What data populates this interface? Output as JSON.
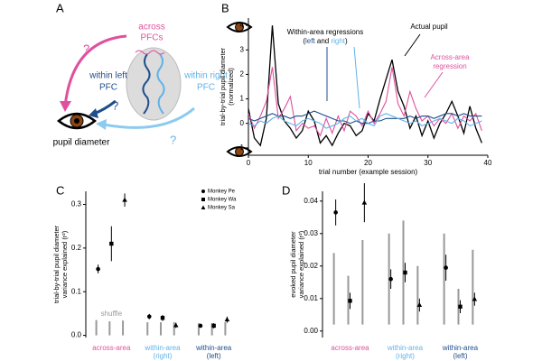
{
  "panel_letters": [
    "A",
    "B",
    "C",
    "D"
  ],
  "diagram": {
    "across": [
      "across",
      "PFCs"
    ],
    "within_left": [
      "within left",
      "PFC"
    ],
    "within_right": [
      "within right",
      "PFC"
    ],
    "pupil": "pupil diameter",
    "questions": [
      "?",
      "?",
      "?"
    ]
  },
  "chart_data": [
    {
      "type": "line",
      "xlabel": "trial number (example session)",
      "ylabel": [
        "trial-by-trial pupil diameter",
        "(normalized)"
      ],
      "xlim": [
        0,
        40
      ],
      "xticks": [
        0,
        10,
        20,
        30,
        40
      ],
      "ylim": [
        -1.3,
        4.3
      ],
      "yticks": [
        -1,
        0,
        1,
        2,
        3,
        4
      ],
      "annotations": {
        "within": "Within-area regressions",
        "within_sub": [
          "(",
          "left",
          " and ",
          "right",
          ")"
        ],
        "actual": "Actual pupil",
        "across": [
          "Across-area",
          "regression"
        ]
      },
      "x": [
        0,
        1,
        2,
        3,
        4,
        5,
        6,
        7,
        8,
        9,
        10,
        11,
        12,
        13,
        14,
        15,
        16,
        17,
        18,
        19,
        20,
        21,
        22,
        23,
        24,
        25,
        26,
        27,
        28,
        29,
        30,
        31,
        32,
        33,
        34,
        35,
        36,
        37,
        38,
        39
      ],
      "series": [
        {
          "name": "Actual pupil",
          "color": "#000000",
          "values": [
            0.6,
            -0.6,
            -0.9,
            0.2,
            4.0,
            0.8,
            0.1,
            -0.2,
            -0.6,
            -0.3,
            0.5,
            0.1,
            -0.8,
            -0.5,
            -0.9,
            -0.4,
            0.0,
            -0.1,
            -0.5,
            -0.3,
            0.4,
            0.1,
            1.0,
            1.8,
            2.6,
            1.3,
            0.7,
            -0.2,
            0.3,
            -0.5,
            0.1,
            -0.6,
            0.0,
            0.4,
            0.9,
            0.3,
            -0.4,
            0.7,
            -0.2,
            -0.8
          ]
        },
        {
          "name": "Across-area regression",
          "color": "#e0509f",
          "values": [
            0.4,
            -0.2,
            0.3,
            0.9,
            2.3,
            0.2,
            0.6,
            1.1,
            -0.3,
            0.0,
            -0.2,
            -0.1,
            -0.5,
            0.2,
            -0.4,
            0.3,
            -0.3,
            0.5,
            0.3,
            -0.1,
            0.5,
            0.0,
            0.4,
            0.9,
            2.3,
            0.8,
            0.3,
            1.3,
            0.6,
            0.1,
            0.3,
            -0.1,
            0.2,
            0.0,
            0.4,
            -0.2,
            0.3,
            0.1,
            0.4,
            -0.3
          ]
        },
        {
          "name": "left",
          "color": "#1f4e8c",
          "values": [
            0.2,
            0.1,
            0.2,
            0.3,
            0.4,
            0.3,
            0.3,
            0.2,
            0.3,
            0.3,
            0.4,
            0.5,
            0.4,
            0.3,
            0.2,
            0.1,
            0.1,
            0.0,
            0.1,
            0.0,
            0.0,
            0.1,
            0.1,
            0.2,
            0.2,
            0.2,
            0.2,
            0.3,
            0.2,
            0.3,
            0.3,
            0.2,
            0.3,
            0.4,
            0.4,
            0.3,
            0.4,
            0.3,
            0.3,
            0.3
          ]
        },
        {
          "name": "right",
          "color": "#5fb3e8",
          "values": [
            0.0,
            -0.1,
            0.1,
            0.0,
            0.2,
            0.3,
            0.1,
            0.0,
            -0.1,
            0.1,
            0.2,
            0.1,
            0.0,
            -0.2,
            -0.1,
            0.0,
            0.2,
            0.3,
            0.1,
            0.2,
            0.0,
            -0.1,
            0.3,
            0.4,
            0.3,
            0.2,
            0.1,
            0.0,
            0.1,
            -0.1,
            0.0,
            0.1,
            0.2,
            0.1,
            0.0,
            0.2,
            0.1,
            -0.1,
            0.0,
            0.1
          ]
        }
      ]
    },
    {
      "type": "errorbar",
      "ylabel": [
        "trial-by-trial pupil diameter",
        "variance explained (r²)"
      ],
      "categories": [
        [
          "across-area"
        ],
        [
          "within-area",
          "(right)"
        ],
        [
          "within-area",
          "(left)"
        ]
      ],
      "category_colors": [
        "#e0509f",
        "#5fb3e8",
        "#1f4e8c"
      ],
      "ylim": [
        -0.005,
        0.33
      ],
      "yticks": [
        {
          "value": 0,
          "label": "0.0"
        },
        0.1,
        0.2,
        0.3
      ],
      "legend": "top-right",
      "shuffle_label": "shuffle",
      "series": [
        {
          "name": "Monkey Pe",
          "marker": "circle",
          "color": "#000000",
          "values": [
            0.152,
            0.043,
            0.022
          ],
          "errors": [
            0.01,
            0.006,
            0.004
          ]
        },
        {
          "name": "Monkey Wa",
          "marker": "square",
          "color": "#000000",
          "values": [
            0.21,
            0.04,
            0.022
          ],
          "errors": [
            0.04,
            0.007,
            0.006
          ]
        },
        {
          "name": "Monkey Sa",
          "marker": "triangle",
          "color": "#000000",
          "values": [
            0.31,
            0.023,
            0.036
          ],
          "errors": [
            0.015,
            0.006,
            0.007
          ]
        }
      ],
      "shuffle": {
        "low": [
          [
            0,
            0,
            0
          ],
          [
            0,
            0,
            0
          ],
          [
            0,
            0,
            0
          ]
        ],
        "high": [
          [
            0.035,
            0.032,
            0.034
          ],
          [
            0.03,
            0.03,
            0.03
          ],
          [
            0.028,
            0.028,
            0.03
          ]
        ]
      }
    },
    {
      "type": "errorbar",
      "ylabel": [
        "evoked pupil diameter",
        "variance explained (r²)"
      ],
      "categories": [
        [
          "across-area"
        ],
        [
          "within-area",
          "(right)"
        ],
        [
          "within-area",
          "(left)"
        ]
      ],
      "category_colors": [
        "#e0509f",
        "#5fb3e8",
        "#1f4e8c"
      ],
      "ylim": [
        -0.002,
        0.043
      ],
      "yticks": [
        {
          "value": 0,
          "label": "0.00"
        },
        0.01,
        0.02,
        0.03,
        0.04
      ],
      "series": [
        {
          "name": "Monkey Pe",
          "marker": "circle",
          "color": "#000000",
          "values": [
            0.0365,
            0.016,
            0.0195
          ],
          "errors": [
            0.004,
            0.003,
            0.004
          ]
        },
        {
          "name": "Monkey Wa",
          "marker": "square",
          "color": "#000000",
          "values": [
            0.0093,
            0.018,
            0.0075
          ],
          "errors": [
            0.0025,
            0.003,
            0.002
          ]
        },
        {
          "name": "Monkey Sa",
          "marker": "triangle",
          "color": "#000000",
          "values": [
            0.0395,
            0.008,
            0.0098
          ],
          "errors": [
            0.006,
            0.002,
            0.002
          ]
        }
      ],
      "shuffle": {
        "low": [
          [
            0.002,
            0.002,
            0.002
          ],
          [
            0.002,
            0.002,
            0.002
          ],
          [
            0.002,
            0.002,
            0.002
          ]
        ],
        "high": [
          [
            0.024,
            0.017,
            0.028
          ],
          [
            0.03,
            0.034,
            0.02
          ],
          [
            0.03,
            0.013,
            0.025
          ]
        ]
      }
    }
  ]
}
